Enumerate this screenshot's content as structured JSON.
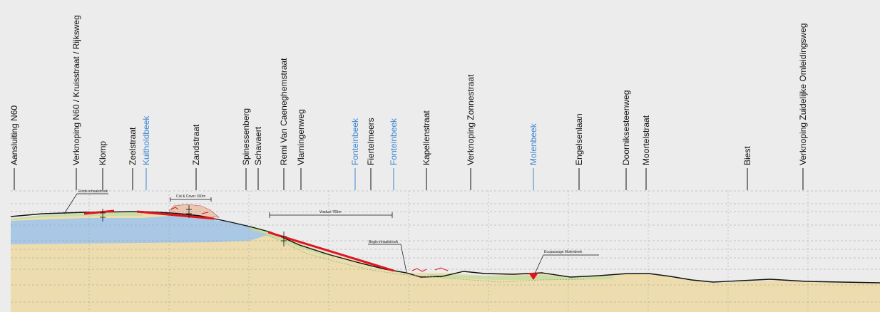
{
  "colors": {
    "background": "#ececec",
    "road_label": "#111111",
    "stream_label": "#3b86d4",
    "ground_line": "#111111",
    "sand": "#ecdcae",
    "groundwater": "#a9c8e6",
    "grass": "#c8dca4",
    "tunnel": "#e0141e",
    "grid": "#9a9a9a"
  },
  "locations": [
    {
      "label": "Aansluiting N60",
      "kind": "road"
    },
    {
      "label": "Verknoping N60 / Kruisstraat / Rijksweg",
      "kind": "road"
    },
    {
      "label": "Klomp",
      "kind": "road"
    },
    {
      "label": "Zeelstraat",
      "kind": "road"
    },
    {
      "label": "Kuitholdbeek",
      "kind": "stream"
    },
    {
      "label": "Zandstraat",
      "kind": "road"
    },
    {
      "label": "Spinessenberg",
      "kind": "road"
    },
    {
      "label": "Schavaert",
      "kind": "road"
    },
    {
      "label": "Remi Van Caeneghemstraat",
      "kind": "road"
    },
    {
      "label": "Vlamingenweg",
      "kind": "road"
    },
    {
      "label": "Fonteinbeek",
      "kind": "stream"
    },
    {
      "label": "Fiertelmeers",
      "kind": "road"
    },
    {
      "label": "Fonteinbeek",
      "kind": "stream"
    },
    {
      "label": "Kapellenstraat",
      "kind": "road"
    },
    {
      "label": "Verknoping Zonnestraat",
      "kind": "road"
    },
    {
      "label": "Molenbeek",
      "kind": "stream"
    },
    {
      "label": "Engelsenlaan",
      "kind": "road"
    },
    {
      "label": "Doorniksesteenweg",
      "kind": "road"
    },
    {
      "label": "Moortelstraat",
      "kind": "road"
    },
    {
      "label": "Biest",
      "kind": "road"
    },
    {
      "label": "Verknoping Zuidelijke Omleidingsweg",
      "kind": "road"
    }
  ],
  "annotations": {
    "end_trench": "Einde inhaalstrook",
    "cut_cover": "Cut & Cover 160m",
    "viaduct": "Viaduct 765m",
    "start_trench": "Begin inhaalstrook",
    "ecopassage": "Ecopassage Molenbeek"
  }
}
